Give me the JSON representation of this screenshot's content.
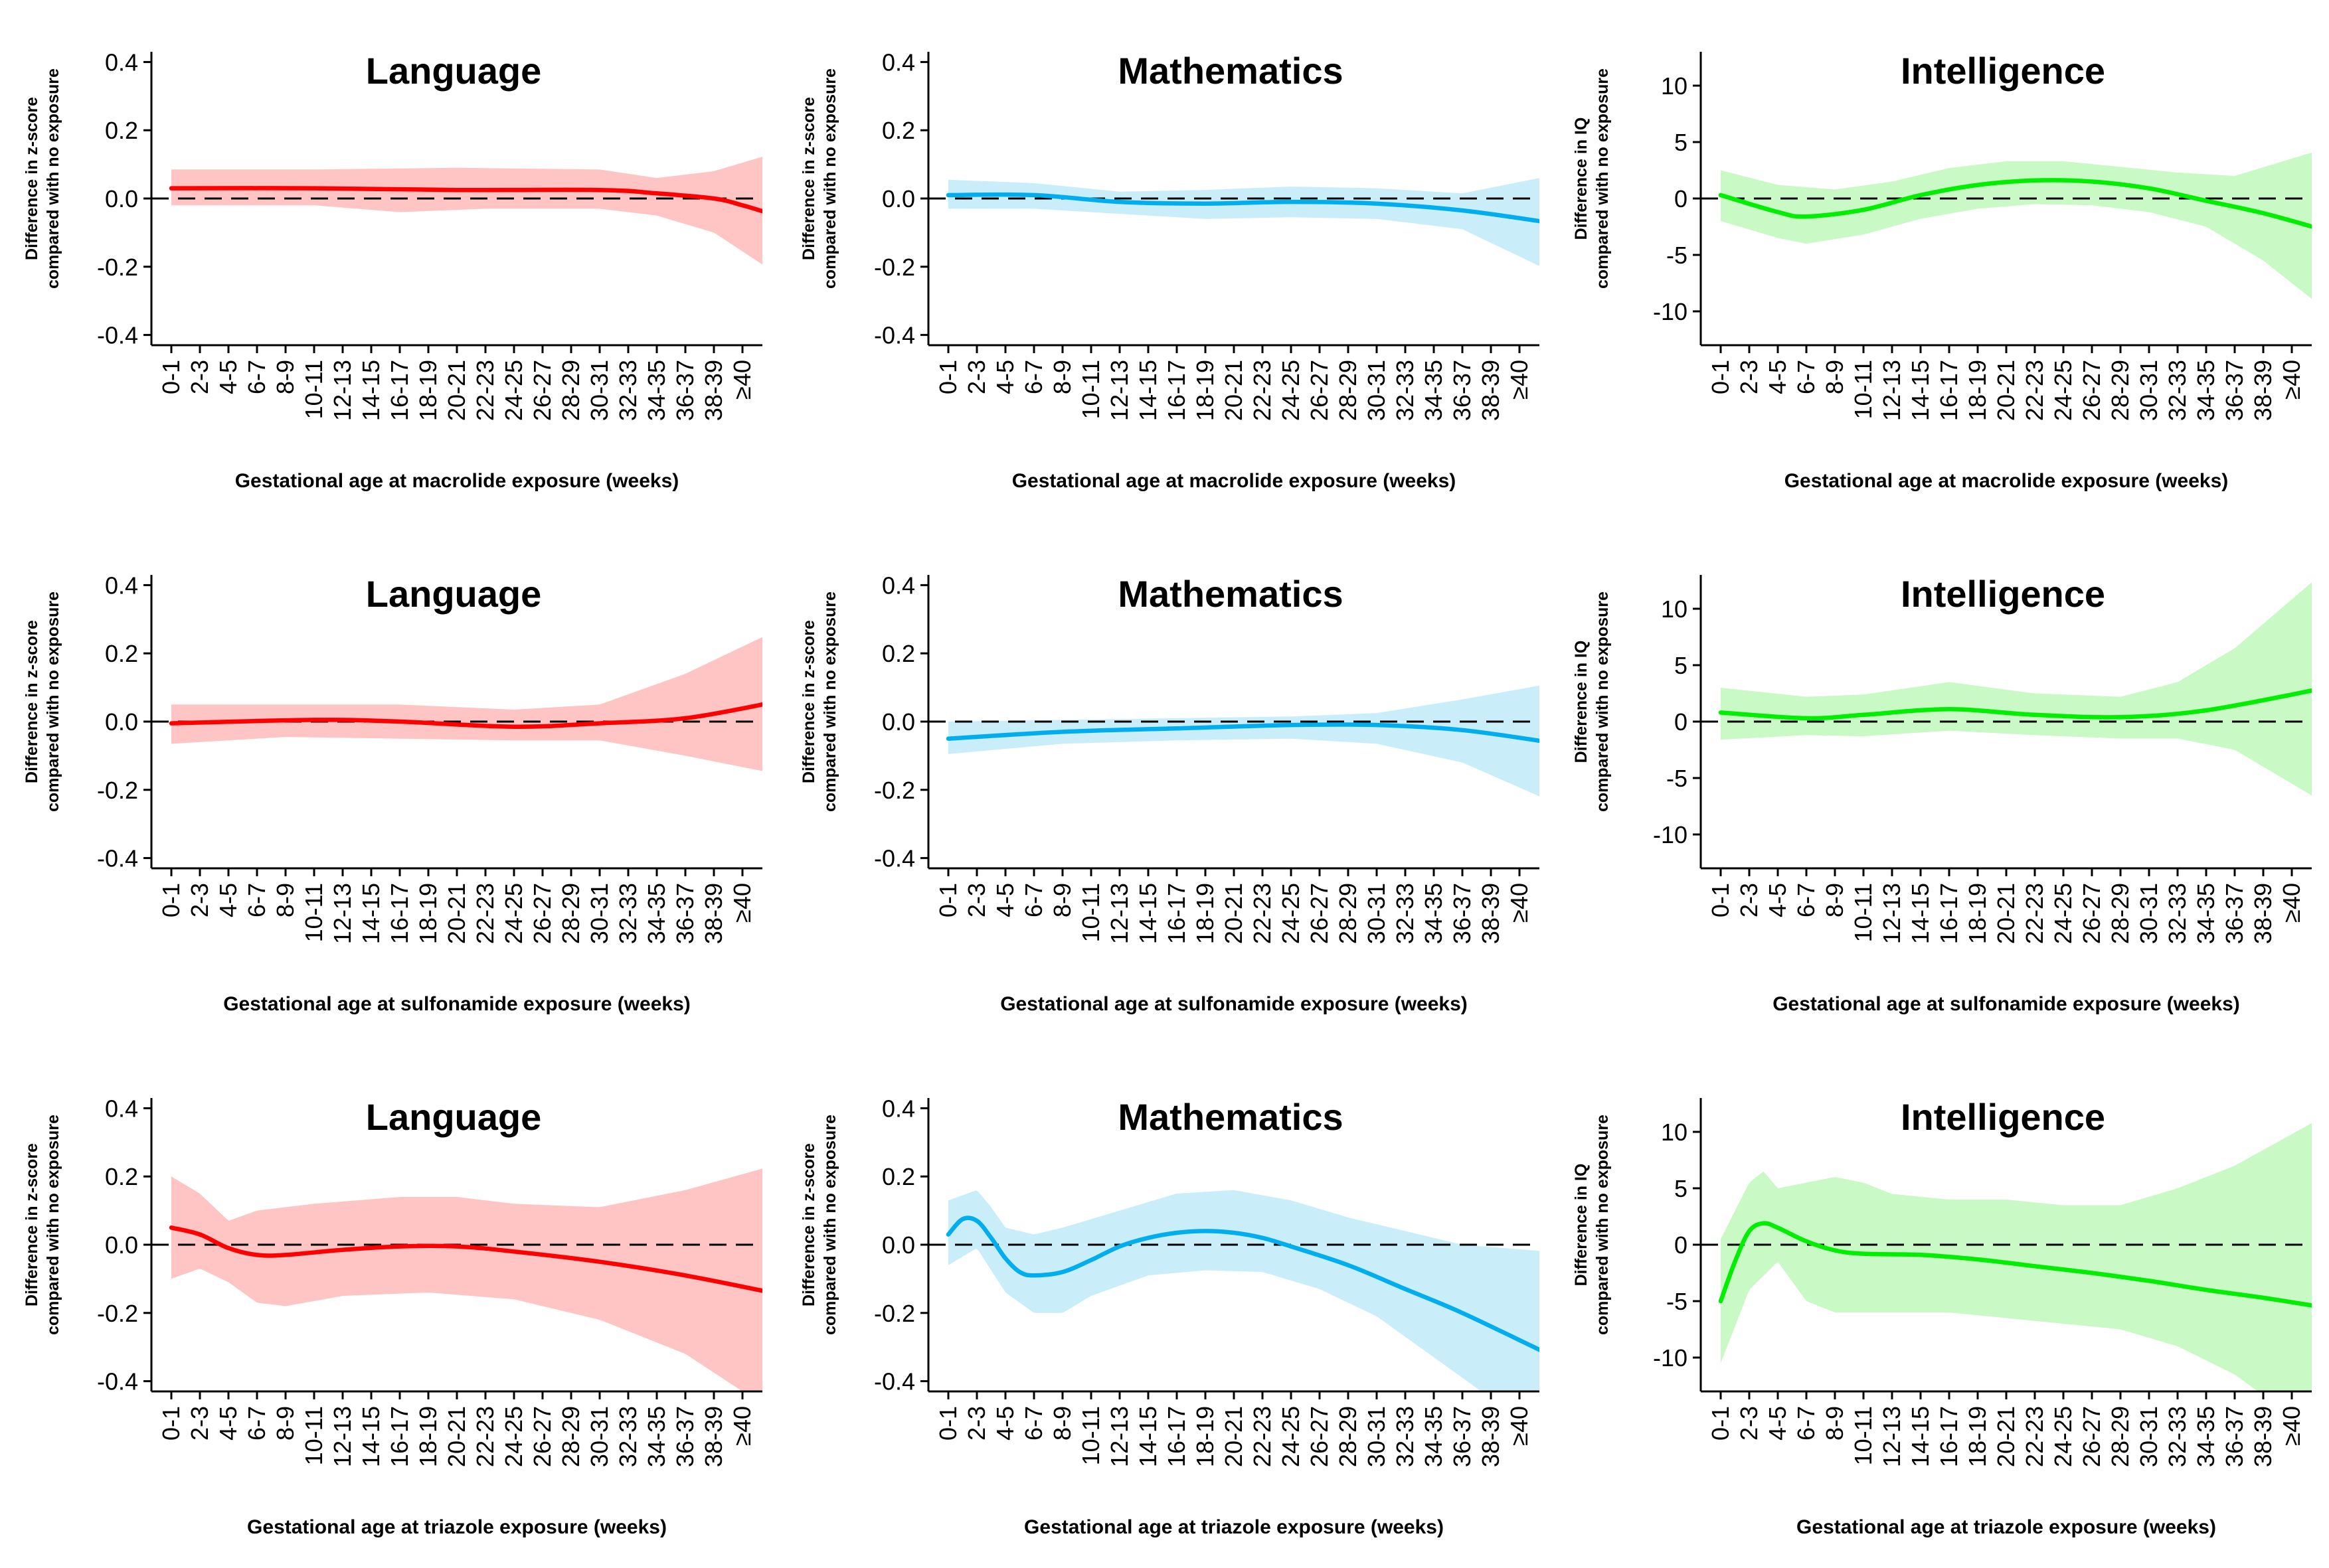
{
  "x_ticks": [
    "0-1",
    "2-3",
    "4-5",
    "6-7",
    "8-9",
    "10-11",
    "12-13",
    "14-15",
    "16-17",
    "18-19",
    "20-21",
    "22-23",
    "24-25",
    "26-27",
    "28-29",
    "30-31",
    "32-33",
    "34-35",
    "36-37",
    "38-39",
    "≥40"
  ],
  "chart_data": [
    {
      "type": "line",
      "title": "Language",
      "xlabel": "Gestational age at macrolide exposure (weeks)",
      "ylabel_line1": "Difference in z-score",
      "ylabel_line2": "compared with no exposure",
      "ylim": [
        -0.43,
        0.43
      ],
      "yticks": [
        0.4,
        0.2,
        0.0,
        -0.2,
        -0.4
      ],
      "ytick_labels": [
        "0.4",
        "0.2",
        "0.0",
        "-0.2",
        "-0.4"
      ],
      "color": "#ff0000",
      "band_color": "#ffc4c4",
      "reference_line": 0,
      "estimate": [
        [
          0,
          0.03
        ],
        [
          5,
          0.03
        ],
        [
          10,
          0.025
        ],
        [
          15,
          0.025
        ],
        [
          17,
          0.015
        ],
        [
          19,
          0.0
        ],
        [
          20,
          -0.02
        ],
        [
          21,
          -0.045
        ]
      ],
      "ci_upper": [
        [
          0,
          0.085
        ],
        [
          5,
          0.085
        ],
        [
          10,
          0.09
        ],
        [
          15,
          0.085
        ],
        [
          17,
          0.06
        ],
        [
          19,
          0.08
        ],
        [
          21,
          0.13
        ]
      ],
      "ci_lower": [
        [
          0,
          -0.02
        ],
        [
          5,
          -0.02
        ],
        [
          8,
          -0.04
        ],
        [
          11,
          -0.03
        ],
        [
          15,
          -0.03
        ],
        [
          17,
          -0.05
        ],
        [
          19,
          -0.1
        ],
        [
          21,
          -0.21
        ]
      ]
    },
    {
      "type": "line",
      "title": "Mathematics",
      "xlabel": "Gestational age at macrolide exposure (weeks)",
      "ylabel_line1": "Difference in z-score",
      "ylabel_line2": "compared with no exposure",
      "ylim": [
        -0.43,
        0.43
      ],
      "yticks": [
        0.4,
        0.2,
        0.0,
        -0.2,
        -0.4
      ],
      "ytick_labels": [
        "0.4",
        "0.2",
        "0.0",
        "-0.2",
        "-0.4"
      ],
      "color": "#00aeef",
      "band_color": "#c9eefa",
      "reference_line": 0,
      "estimate": [
        [
          0,
          0.01
        ],
        [
          3,
          0.01
        ],
        [
          6,
          -0.01
        ],
        [
          9,
          -0.015
        ],
        [
          12,
          -0.01
        ],
        [
          15,
          -0.015
        ],
        [
          18,
          -0.035
        ],
        [
          21,
          -0.07
        ]
      ],
      "ci_upper": [
        [
          0,
          0.055
        ],
        [
          3,
          0.045
        ],
        [
          6,
          0.02
        ],
        [
          9,
          0.025
        ],
        [
          12,
          0.035
        ],
        [
          15,
          0.03
        ],
        [
          18,
          0.015
        ],
        [
          21,
          0.065
        ]
      ],
      "ci_lower": [
        [
          0,
          -0.03
        ],
        [
          3,
          -0.03
        ],
        [
          6,
          -0.045
        ],
        [
          9,
          -0.06
        ],
        [
          12,
          -0.055
        ],
        [
          15,
          -0.06
        ],
        [
          18,
          -0.09
        ],
        [
          21,
          -0.21
        ]
      ]
    },
    {
      "type": "line",
      "title": "Intelligence",
      "xlabel": "Gestational age at macrolide exposure (weeks)",
      "ylabel_line1": "Difference in IQ",
      "ylabel_line2": "compared with no exposure",
      "ylim": [
        -13,
        13
      ],
      "yticks": [
        10,
        5,
        0,
        -5,
        -10
      ],
      "ytick_labels": [
        "10",
        "5",
        "0",
        "-5",
        "-10"
      ],
      "color": "#00ee00",
      "band_color": "#c9f9c4",
      "reference_line": 0,
      "estimate": [
        [
          0,
          0.3
        ],
        [
          2,
          -1.2
        ],
        [
          3,
          -1.6
        ],
        [
          5,
          -1.0
        ],
        [
          7,
          0.3
        ],
        [
          9,
          1.2
        ],
        [
          11,
          1.6
        ],
        [
          13,
          1.5
        ],
        [
          15,
          0.9
        ],
        [
          17,
          -0.2
        ],
        [
          19,
          -1.3
        ],
        [
          21,
          -2.7
        ]
      ],
      "ci_upper": [
        [
          0,
          2.5
        ],
        [
          2,
          1.2
        ],
        [
          4,
          0.8
        ],
        [
          6,
          1.5
        ],
        [
          8,
          2.7
        ],
        [
          10,
          3.3
        ],
        [
          12,
          3.3
        ],
        [
          14,
          2.8
        ],
        [
          16,
          2.3
        ],
        [
          18,
          2.0
        ],
        [
          21,
          4.3
        ]
      ],
      "ci_lower": [
        [
          0,
          -2.0
        ],
        [
          2,
          -3.5
        ],
        [
          3,
          -4.0
        ],
        [
          5,
          -3.2
        ],
        [
          7,
          -1.8
        ],
        [
          9,
          -0.9
        ],
        [
          11,
          -0.5
        ],
        [
          13,
          -0.6
        ],
        [
          15,
          -1.2
        ],
        [
          17,
          -2.5
        ],
        [
          19,
          -5.5
        ],
        [
          21,
          -9.5
        ]
      ]
    },
    {
      "type": "line",
      "title": "Language",
      "xlabel": "Gestational age at sulfonamide exposure (weeks)",
      "ylabel_line1": "Difference in z-score",
      "ylabel_line2": "compared with no exposure",
      "ylim": [
        -0.43,
        0.43
      ],
      "yticks": [
        0.4,
        0.2,
        0.0,
        -0.2,
        -0.4
      ],
      "ytick_labels": [
        "0.4",
        "0.2",
        "0.0",
        "-0.2",
        "-0.4"
      ],
      "color": "#ff0000",
      "band_color": "#ffc4c4",
      "reference_line": 0,
      "estimate": [
        [
          0,
          -0.005
        ],
        [
          5,
          0.005
        ],
        [
          8,
          0.0
        ],
        [
          12,
          -0.015
        ],
        [
          15,
          -0.005
        ],
        [
          18,
          0.01
        ],
        [
          21,
          0.055
        ]
      ],
      "ci_upper": [
        [
          0,
          0.05
        ],
        [
          4,
          0.05
        ],
        [
          8,
          0.05
        ],
        [
          12,
          0.035
        ],
        [
          15,
          0.05
        ],
        [
          18,
          0.14
        ],
        [
          21,
          0.26
        ]
      ],
      "ci_lower": [
        [
          0,
          -0.065
        ],
        [
          4,
          -0.045
        ],
        [
          8,
          -0.05
        ],
        [
          12,
          -0.055
        ],
        [
          15,
          -0.055
        ],
        [
          18,
          -0.1
        ],
        [
          21,
          -0.15
        ]
      ]
    },
    {
      "type": "line",
      "title": "Mathematics",
      "xlabel": "Gestational age at sulfonamide exposure (weeks)",
      "ylabel_line1": "Difference in z-score",
      "ylabel_line2": "compared with no exposure",
      "ylim": [
        -0.43,
        0.43
      ],
      "yticks": [
        0.4,
        0.2,
        0.0,
        -0.2,
        -0.4
      ],
      "ytick_labels": [
        "0.4",
        "0.2",
        "0.0",
        "-0.2",
        "-0.4"
      ],
      "color": "#00aeef",
      "band_color": "#c9eefa",
      "reference_line": 0,
      "estimate": [
        [
          0,
          -0.05
        ],
        [
          4,
          -0.03
        ],
        [
          8,
          -0.02
        ],
        [
          12,
          -0.01
        ],
        [
          15,
          -0.01
        ],
        [
          18,
          -0.025
        ],
        [
          21,
          -0.06
        ]
      ],
      "ci_upper": [
        [
          0,
          0.0
        ],
        [
          4,
          0.005
        ],
        [
          8,
          0.01
        ],
        [
          12,
          0.015
        ],
        [
          15,
          0.025
        ],
        [
          18,
          0.065
        ],
        [
          21,
          0.11
        ]
      ],
      "ci_lower": [
        [
          0,
          -0.095
        ],
        [
          4,
          -0.065
        ],
        [
          8,
          -0.055
        ],
        [
          12,
          -0.05
        ],
        [
          15,
          -0.065
        ],
        [
          18,
          -0.12
        ],
        [
          21,
          -0.23
        ]
      ]
    },
    {
      "type": "line",
      "title": "Intelligence",
      "xlabel": "Gestational age at sulfonamide exposure (weeks)",
      "ylabel_line1": "Difference in IQ",
      "ylabel_line2": "compared with no exposure",
      "ylim": [
        -13,
        13
      ],
      "yticks": [
        10,
        5,
        0,
        -5,
        -10
      ],
      "ytick_labels": [
        "10",
        "5",
        "0",
        "-5",
        "-10"
      ],
      "color": "#00ee00",
      "band_color": "#c9f9c4",
      "reference_line": 0,
      "estimate": [
        [
          0,
          0.8
        ],
        [
          3,
          0.3
        ],
        [
          5,
          0.6
        ],
        [
          8,
          1.1
        ],
        [
          11,
          0.6
        ],
        [
          14,
          0.4
        ],
        [
          17,
          1.0
        ],
        [
          21,
          2.9
        ]
      ],
      "ci_upper": [
        [
          0,
          3.0
        ],
        [
          3,
          2.2
        ],
        [
          5,
          2.4
        ],
        [
          8,
          3.5
        ],
        [
          11,
          2.5
        ],
        [
          14,
          2.2
        ],
        [
          16,
          3.5
        ],
        [
          18,
          6.5
        ],
        [
          21,
          13.0
        ]
      ],
      "ci_lower": [
        [
          0,
          -1.6
        ],
        [
          3,
          -1.2
        ],
        [
          5,
          -1.3
        ],
        [
          8,
          -0.8
        ],
        [
          11,
          -1.2
        ],
        [
          14,
          -1.5
        ],
        [
          16,
          -1.5
        ],
        [
          18,
          -2.5
        ],
        [
          21,
          -7.0
        ]
      ]
    },
    {
      "type": "line",
      "title": "Language",
      "xlabel": "Gestational age at triazole exposure (weeks)",
      "ylabel_line1": "Difference in z-score",
      "ylabel_line2": "compared with no exposure",
      "ylim": [
        -0.43,
        0.43
      ],
      "yticks": [
        0.4,
        0.2,
        0.0,
        -0.2,
        -0.4
      ],
      "ytick_labels": [
        "0.4",
        "0.2",
        "0.0",
        "-0.2",
        "-0.4"
      ],
      "color": "#ff0000",
      "band_color": "#ffc4c4",
      "reference_line": 0,
      "estimate": [
        [
          0,
          0.05
        ],
        [
          1,
          0.03
        ],
        [
          2,
          -0.01
        ],
        [
          3,
          -0.03
        ],
        [
          4,
          -0.03
        ],
        [
          6,
          -0.015
        ],
        [
          8,
          -0.005
        ],
        [
          10,
          -0.005
        ],
        [
          12,
          -0.02
        ],
        [
          15,
          -0.05
        ],
        [
          18,
          -0.09
        ],
        [
          21,
          -0.14
        ]
      ],
      "ci_upper": [
        [
          0,
          0.2
        ],
        [
          1,
          0.15
        ],
        [
          2,
          0.07
        ],
        [
          3,
          0.1
        ],
        [
          5,
          0.12
        ],
        [
          8,
          0.14
        ],
        [
          10,
          0.14
        ],
        [
          12,
          0.12
        ],
        [
          15,
          0.11
        ],
        [
          18,
          0.16
        ],
        [
          21,
          0.23
        ]
      ],
      "ci_lower": [
        [
          0,
          -0.1
        ],
        [
          1,
          -0.07
        ],
        [
          2,
          -0.11
        ],
        [
          3,
          -0.17
        ],
        [
          4,
          -0.18
        ],
        [
          6,
          -0.15
        ],
        [
          9,
          -0.14
        ],
        [
          12,
          -0.16
        ],
        [
          15,
          -0.22
        ],
        [
          18,
          -0.32
        ],
        [
          20,
          -0.43
        ],
        [
          21,
          -0.5
        ]
      ]
    },
    {
      "type": "line",
      "title": "Mathematics",
      "xlabel": "Gestational age at triazole exposure (weeks)",
      "ylabel_line1": "Difference in z-score",
      "ylabel_line2": "compared with no exposure",
      "ylim": [
        -0.43,
        0.43
      ],
      "yticks": [
        0.4,
        0.2,
        0.0,
        -0.2,
        -0.4
      ],
      "ytick_labels": [
        "0.4",
        "0.2",
        "0.0",
        "-0.2",
        "-0.4"
      ],
      "color": "#00aeef",
      "band_color": "#c9eefa",
      "reference_line": 0,
      "estimate": [
        [
          0,
          0.03
        ],
        [
          0.5,
          0.075
        ],
        [
          1,
          0.07
        ],
        [
          1.5,
          0.02
        ],
        [
          2,
          -0.04
        ],
        [
          2.5,
          -0.08
        ],
        [
          3,
          -0.09
        ],
        [
          4,
          -0.08
        ],
        [
          5,
          -0.045
        ],
        [
          6,
          -0.005
        ],
        [
          7,
          0.02
        ],
        [
          8,
          0.035
        ],
        [
          9,
          0.04
        ],
        [
          10,
          0.035
        ],
        [
          11,
          0.02
        ],
        [
          12,
          -0.005
        ],
        [
          14,
          -0.06
        ],
        [
          16,
          -0.13
        ],
        [
          18,
          -0.2
        ],
        [
          21,
          -0.32
        ]
      ],
      "ci_upper": [
        [
          0,
          0.13
        ],
        [
          1,
          0.16
        ],
        [
          1.5,
          0.11
        ],
        [
          2,
          0.05
        ],
        [
          3,
          0.03
        ],
        [
          4,
          0.05
        ],
        [
          6,
          0.1
        ],
        [
          8,
          0.15
        ],
        [
          10,
          0.16
        ],
        [
          12,
          0.13
        ],
        [
          14,
          0.08
        ],
        [
          16,
          0.04
        ],
        [
          18,
          0.0
        ],
        [
          21,
          -0.02
        ]
      ],
      "ci_lower": [
        [
          0,
          -0.06
        ],
        [
          1,
          -0.01
        ],
        [
          2,
          -0.14
        ],
        [
          3,
          -0.2
        ],
        [
          4,
          -0.2
        ],
        [
          5,
          -0.15
        ],
        [
          7,
          -0.09
        ],
        [
          9,
          -0.075
        ],
        [
          11,
          -0.08
        ],
        [
          13,
          -0.13
        ],
        [
          15,
          -0.21
        ],
        [
          17,
          -0.33
        ],
        [
          19,
          -0.45
        ],
        [
          21,
          -0.62
        ]
      ]
    },
    {
      "type": "line",
      "title": "Intelligence",
      "xlabel": "Gestational age at triazole exposure (weeks)",
      "ylabel_line1": "Difference in IQ",
      "ylabel_line2": "compared with no exposure",
      "ylim": [
        -13,
        13
      ],
      "yticks": [
        10,
        5,
        0,
        -5,
        -10
      ],
      "ytick_labels": [
        "10",
        "5",
        "0",
        "-5",
        "-10"
      ],
      "color": "#00ee00",
      "band_color": "#c9f9c4",
      "reference_line": 0,
      "estimate": [
        [
          0,
          -5
        ],
        [
          0.5,
          -1.5
        ],
        [
          1,
          1.2
        ],
        [
          1.5,
          1.9
        ],
        [
          2,
          1.5
        ],
        [
          3,
          0.3
        ],
        [
          4,
          -0.5
        ],
        [
          5,
          -0.8
        ],
        [
          7,
          -0.9
        ],
        [
          9,
          -1.3
        ],
        [
          11,
          -1.9
        ],
        [
          13,
          -2.5
        ],
        [
          15,
          -3.2
        ],
        [
          17,
          -4.0
        ],
        [
          19,
          -4.7
        ],
        [
          21,
          -5.5
        ]
      ],
      "ci_upper": [
        [
          0,
          0.5
        ],
        [
          1,
          5.5
        ],
        [
          1.5,
          6.5
        ],
        [
          2,
          5.0
        ],
        [
          3,
          5.5
        ],
        [
          4,
          6.0
        ],
        [
          5,
          5.5
        ],
        [
          6,
          4.5
        ],
        [
          8,
          4.0
        ],
        [
          10,
          4.0
        ],
        [
          12,
          3.5
        ],
        [
          14,
          3.5
        ],
        [
          16,
          5.0
        ],
        [
          18,
          7.0
        ],
        [
          21,
          11.2
        ]
      ],
      "ci_lower": [
        [
          0,
          -10.5
        ],
        [
          1,
          -4.0
        ],
        [
          2,
          -1.5
        ],
        [
          3,
          -5.0
        ],
        [
          4,
          -6.0
        ],
        [
          6,
          -6.0
        ],
        [
          8,
          -6.0
        ],
        [
          10,
          -6.5
        ],
        [
          12,
          -7.0
        ],
        [
          14,
          -7.5
        ],
        [
          16,
          -9.0
        ],
        [
          18,
          -11.5
        ],
        [
          21,
          -17.0
        ]
      ]
    }
  ]
}
